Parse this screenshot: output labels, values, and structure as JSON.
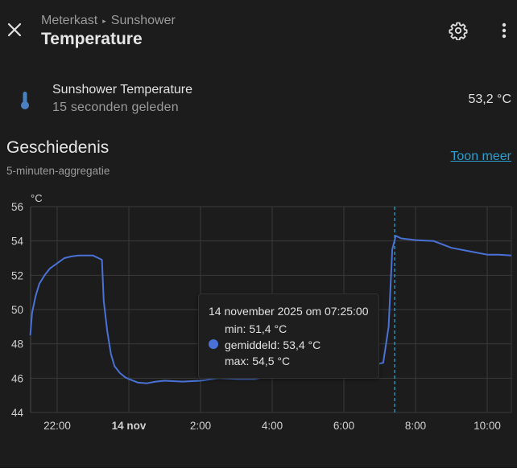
{
  "header": {
    "breadcrumb": [
      "Meterkast",
      "Sunshower"
    ],
    "breadcrumb_separator": "▸",
    "title": "Temperature",
    "icons": [
      "close-icon",
      "gear-icon",
      "more-vertical-icon"
    ]
  },
  "entity": {
    "icon": "thermometer-icon",
    "name": "Sunshower Temperature",
    "last_changed": "15 seconden geleden",
    "value": "53,2 °C",
    "icon_color": "#4a7fc0"
  },
  "history": {
    "title": "Geschiedenis",
    "subtitle": "5-minuten-aggregatie",
    "show_more_label": "Toon meer",
    "link_color": "#2a9fd0"
  },
  "tooltip": {
    "timestamp": "14 november 2025 om 07:25:00",
    "min": "min: 51,4 °C",
    "mean": "gemiddeld: 53,4 °C",
    "max": "max: 54,5 °C"
  },
  "chart_data": {
    "type": "line",
    "title": "",
    "xlabel": "",
    "ylabel": "°C",
    "ylim": [
      44,
      56
    ],
    "yticks": [
      "56",
      "54",
      "52",
      "50",
      "48",
      "46",
      "44"
    ],
    "xticks": [
      "22:00",
      "14 nov",
      "2:00",
      "4:00",
      "6:00",
      "8:00",
      "10:00"
    ],
    "grid": true,
    "legend": "none",
    "line_color": "#4a72d6",
    "cursor_time": "07:25",
    "series": [
      {
        "name": "Sunshower Temperature",
        "x_hours": [
          -2.75,
          -2.7,
          -2.6,
          -2.5,
          -2.35,
          -2.2,
          -2.0,
          -1.8,
          -1.6,
          -1.4,
          -1.2,
          -1.0,
          -0.85,
          -0.75,
          -0.7,
          -0.6,
          -0.5,
          -0.4,
          -0.25,
          -0.1,
          0.0,
          0.25,
          0.5,
          0.75,
          1.0,
          1.5,
          2.0,
          2.5,
          3.0,
          3.5,
          3.9,
          4.5,
          5.0,
          5.5,
          6.0,
          6.5,
          6.9,
          7.1,
          7.25,
          7.35,
          7.45,
          7.6,
          8.0,
          8.5,
          9.0,
          9.5,
          10.0,
          10.33,
          10.67
        ],
        "values": [
          48.5,
          49.8,
          50.8,
          51.5,
          52.0,
          52.4,
          52.7,
          53.0,
          53.1,
          53.15,
          53.15,
          53.15,
          53.0,
          52.9,
          50.5,
          48.7,
          47.4,
          46.7,
          46.3,
          46.05,
          45.95,
          45.75,
          45.7,
          45.8,
          45.85,
          45.8,
          45.85,
          46.0,
          45.95,
          45.95,
          46.1,
          46.2,
          46.3,
          46.4,
          46.5,
          46.7,
          46.8,
          46.9,
          49.0,
          53.5,
          54.3,
          54.15,
          54.05,
          54.0,
          53.6,
          53.4,
          53.2,
          53.2,
          53.15
        ]
      }
    ]
  }
}
